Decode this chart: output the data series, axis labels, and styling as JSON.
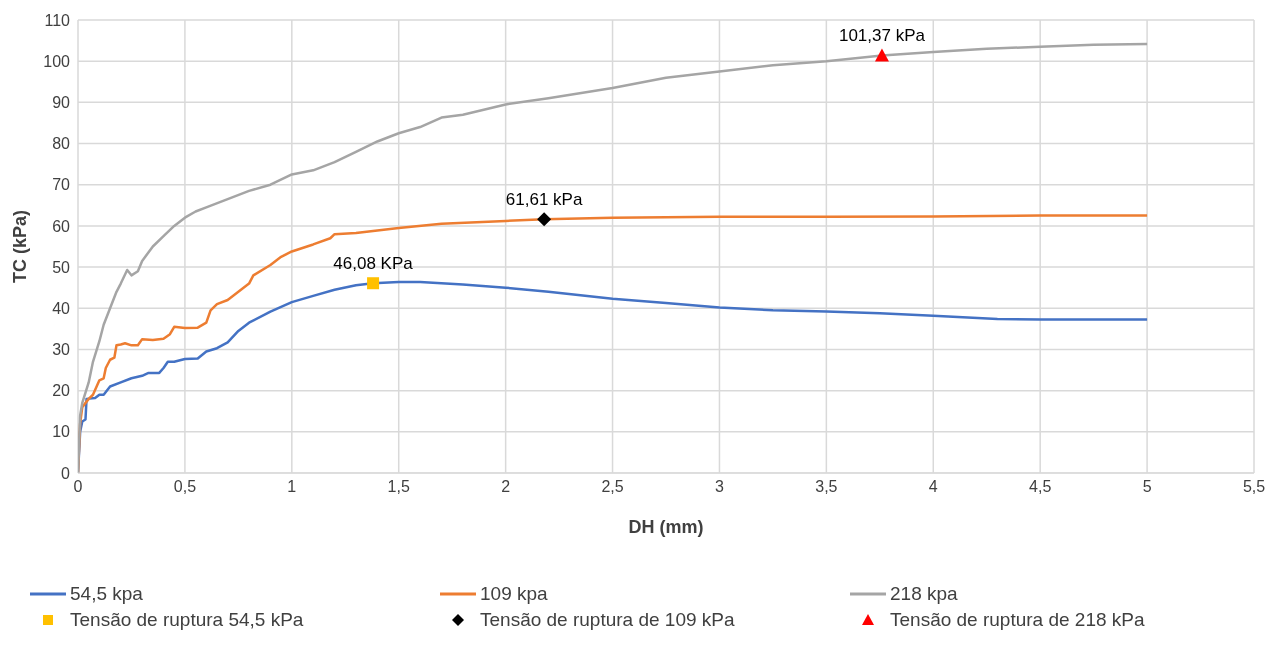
{
  "chart_data": {
    "type": "line",
    "xlabel": "DH (mm)",
    "ylabel": "TC (kPa)",
    "xlim": [
      0,
      5.5
    ],
    "ylim": [
      0,
      110
    ],
    "xticks": [
      0,
      {
        "value": 0.5,
        "label": "0,5"
      },
      1,
      {
        "value": 1.5,
        "label": "1,5"
      },
      2,
      {
        "value": 2.5,
        "label": "2,5"
      },
      3,
      {
        "value": 3.5,
        "label": "3,5"
      },
      4,
      {
        "value": 4.5,
        "label": "4,5"
      },
      5,
      {
        "value": 5.5,
        "label": "5,5"
      }
    ],
    "yticks": [
      0,
      10,
      20,
      30,
      40,
      50,
      60,
      70,
      80,
      90,
      100,
      110
    ],
    "grid": true,
    "legend": "bottom",
    "line_style": "solid",
    "series": [
      {
        "name": "54,5 kpa",
        "color": "#4472c4",
        "marker": "none",
        "x": [
          0,
          0.01,
          0.02,
          0.035,
          0.04,
          0.08,
          0.1,
          0.12,
          0.15,
          0.2,
          0.25,
          0.3,
          0.33,
          0.38,
          0.4,
          0.42,
          0.45,
          0.5,
          0.56,
          0.6,
          0.65,
          0.7,
          0.75,
          0.8,
          0.9,
          1.0,
          1.1,
          1.2,
          1.3,
          1.38,
          1.5,
          1.6,
          1.8,
          2.0,
          2.2,
          2.5,
          2.75,
          3.0,
          3.25,
          3.5,
          3.75,
          4.0,
          4.3,
          4.5,
          5.0
        ],
        "values": [
          0,
          10,
          12.5,
          13,
          18,
          18.2,
          19,
          19,
          21,
          22,
          23,
          23.6,
          24.3,
          24.3,
          25.5,
          27,
          27,
          27.7,
          27.8,
          29.5,
          30.3,
          31.7,
          34.5,
          36.5,
          39.2,
          41.5,
          43,
          44.5,
          45.6,
          46.1,
          46.4,
          46.4,
          45.8,
          45,
          44,
          42.3,
          41.3,
          40.2,
          39.5,
          39.2,
          38.8,
          38.2,
          37.4,
          37.3,
          37.3
        ]
      },
      {
        "name": "109 kpa",
        "color": "#ed7d31",
        "marker": "none",
        "x": [
          0,
          0.01,
          0.02,
          0.05,
          0.07,
          0.1,
          0.12,
          0.13,
          0.15,
          0.17,
          0.18,
          0.2,
          0.22,
          0.25,
          0.28,
          0.3,
          0.35,
          0.4,
          0.43,
          0.45,
          0.5,
          0.56,
          0.6,
          0.62,
          0.65,
          0.7,
          0.75,
          0.8,
          0.82,
          0.9,
          0.95,
          1.0,
          1.1,
          1.18,
          1.2,
          1.3,
          1.5,
          1.7,
          2.0,
          2.18,
          2.5,
          3.0,
          3.5,
          4.0,
          4.5,
          5.0
        ],
        "values": [
          0,
          12,
          16,
          18,
          19,
          22.5,
          23,
          25.5,
          27.5,
          28,
          31,
          31.2,
          31.5,
          31,
          31,
          32.5,
          32.3,
          32.6,
          33.7,
          35.5,
          35.2,
          35.3,
          36.5,
          39.5,
          41,
          42,
          44,
          46,
          48,
          50.5,
          52.5,
          53.8,
          55.5,
          57,
          58,
          58.3,
          59.5,
          60.5,
          61.2,
          61.6,
          62,
          62.2,
          62.2,
          62.3,
          62.5,
          62.5
        ]
      },
      {
        "name": "218 kpa",
        "color": "#a5a5a5",
        "marker": "none",
        "x": [
          0,
          0.01,
          0.02,
          0.05,
          0.07,
          0.1,
          0.12,
          0.15,
          0.18,
          0.2,
          0.23,
          0.25,
          0.28,
          0.3,
          0.35,
          0.4,
          0.45,
          0.5,
          0.55,
          0.6,
          0.7,
          0.8,
          0.9,
          1.0,
          1.1,
          1.2,
          1.3,
          1.4,
          1.5,
          1.6,
          1.7,
          1.8,
          2.0,
          2.2,
          2.5,
          2.75,
          3.0,
          3.25,
          3.5,
          3.76,
          4.0,
          4.25,
          4.5,
          4.75,
          5.0
        ],
        "values": [
          0,
          14,
          17,
          22,
          27,
          32,
          36,
          40,
          44,
          46,
          49.3,
          48,
          49,
          51.5,
          55,
          57.5,
          60,
          62,
          63.5,
          64.5,
          66.5,
          68.5,
          70,
          72.5,
          73.5,
          75.5,
          78,
          80.5,
          82.5,
          84,
          86.3,
          87,
          89.5,
          91,
          93.5,
          96,
          97.5,
          99,
          100,
          101.4,
          102.2,
          103,
          103.5,
          104,
          104.2
        ]
      },
      {
        "name": "Tensão de ruptura 54,5 kPa",
        "type": "scatter",
        "color": "#ffc000",
        "marker": "square",
        "x": [
          1.38
        ],
        "values": [
          46.08
        ],
        "value_labels": [
          "46,08 KPa"
        ]
      },
      {
        "name": "Tensão de ruptura de 109 kPa",
        "type": "scatter",
        "color": "#000000",
        "marker": "diamond",
        "x": [
          2.18
        ],
        "values": [
          61.61
        ],
        "value_labels": [
          "61,61 kPa"
        ]
      },
      {
        "name": "Tensão de ruptura de 218 kPa",
        "type": "scatter",
        "color": "#ff0000",
        "marker": "triangle",
        "x": [
          3.76
        ],
        "values": [
          101.37
        ],
        "value_labels": [
          "101,37 kPa"
        ]
      }
    ]
  }
}
